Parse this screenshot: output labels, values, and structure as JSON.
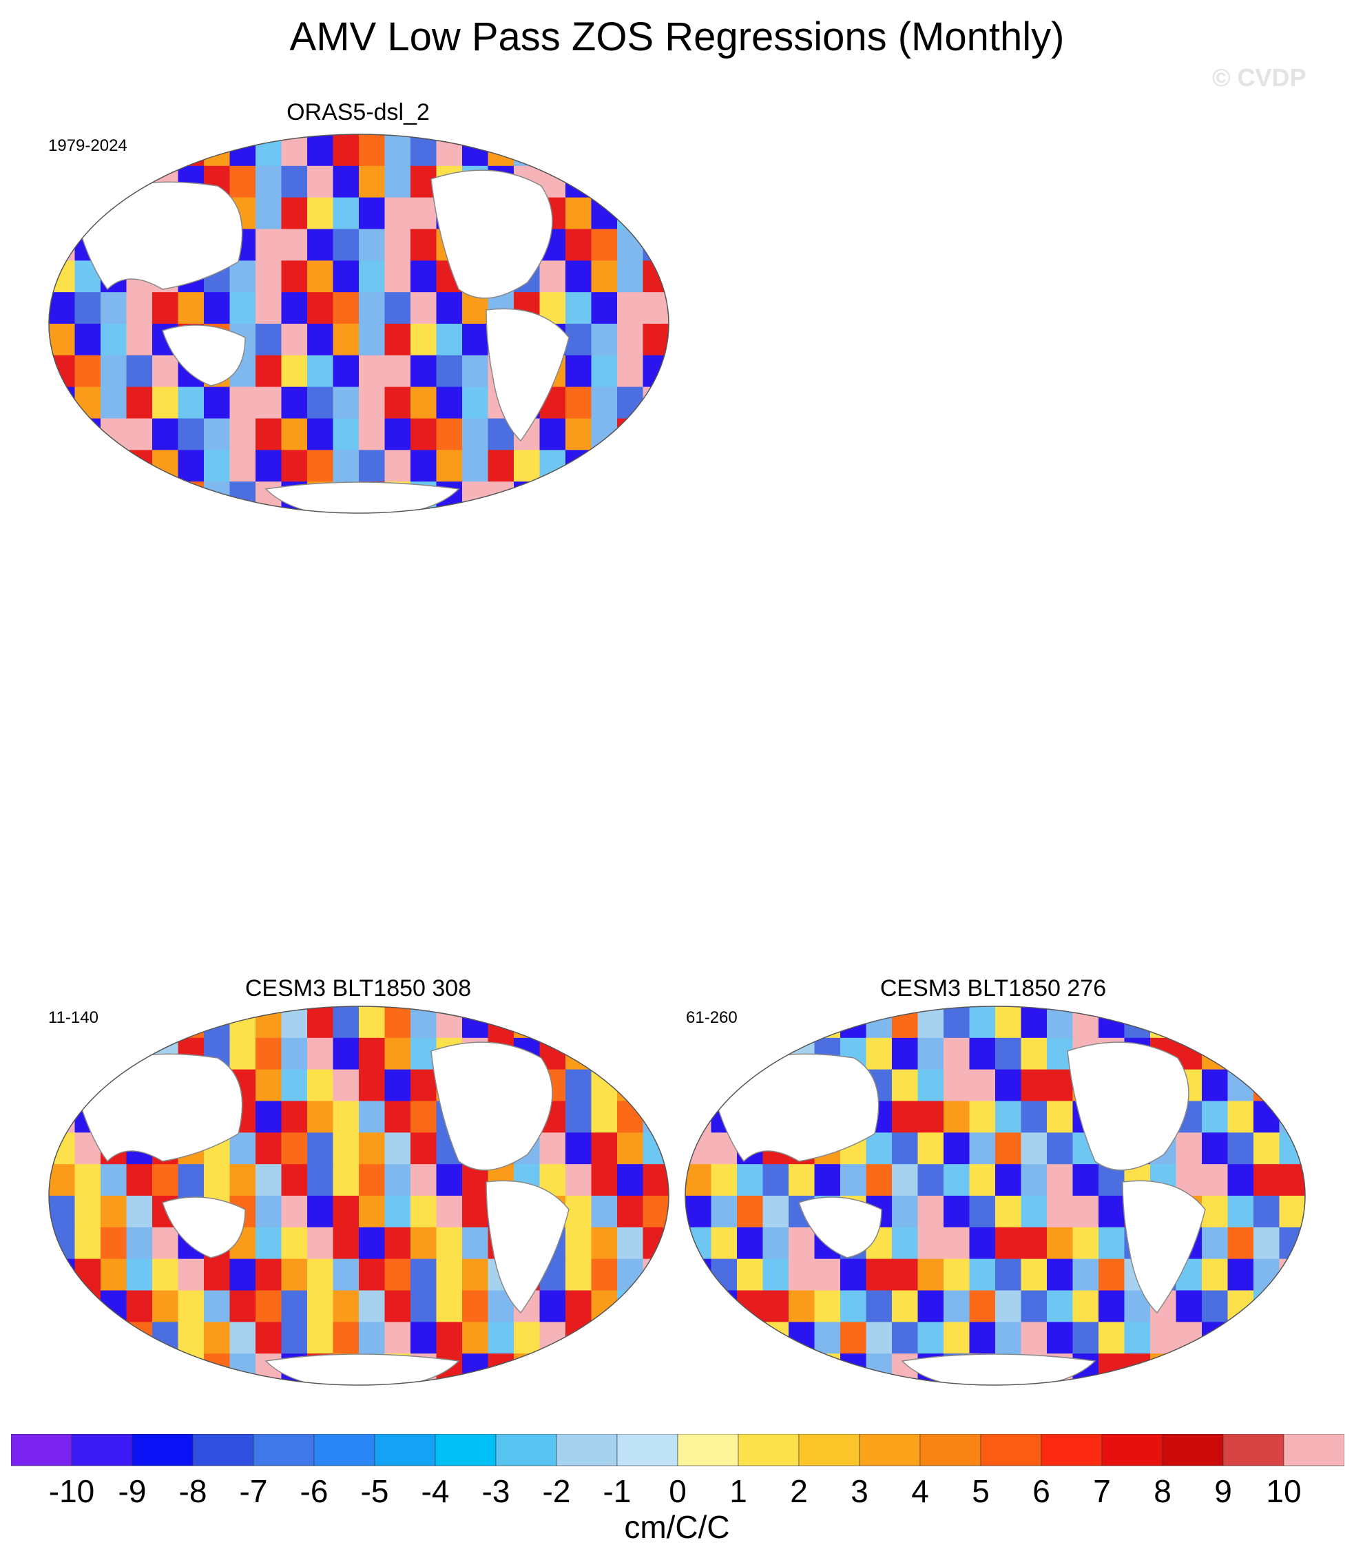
{
  "title": "AMV Low Pass ZOS Regressions (Monthly)",
  "watermark": "© CVDP",
  "panels": [
    {
      "name": "ORAS5-dsl_2",
      "period": "1979-2024",
      "palette": [
        "#f6b4b8",
        "#2a14f0",
        "#4b6fe0",
        "#7fb8ee",
        "#f6b4b8",
        "#e71d1d",
        "#fb9b1a",
        "#2a14f0",
        "#6ec6f3",
        "#f6b4b8",
        "#2a14f0",
        "#e71d1d",
        "#fb6a18",
        "#7fb8ee",
        "#4b6fe0",
        "#f6b4b8",
        "#2a14f0",
        "#fb9b1a",
        "#7fb8ee",
        "#e71d1d",
        "#fde14a",
        "#6ec6f3",
        "#2a14f0",
        "#f6b4b8"
      ]
    },
    {
      "name": "CESM3 BLT1850 308",
      "period": "11-140",
      "palette": [
        "#e71d1d",
        "#fb9b1a",
        "#fde14a",
        "#7fb8ee",
        "#e71d1d",
        "#fb6a18",
        "#4b6fe0",
        "#fde14a",
        "#fb9b1a",
        "#a6d2f0",
        "#e71d1d",
        "#4b6fe0",
        "#fde14a",
        "#fb6a18",
        "#7fb8ee",
        "#f6b4b8",
        "#2a14f0",
        "#e71d1d",
        "#fb9b1a",
        "#6ec6f3",
        "#fde14a",
        "#f6b4b8",
        "#e71d1d",
        "#2a14f0"
      ]
    },
    {
      "name": "CESM3 BLT1850 276",
      "period": "61-260",
      "palette": [
        "#e71d1d",
        "#fb9b1a",
        "#fde14a",
        "#6ec6f3",
        "#4b6fe0",
        "#fde14a",
        "#2a14f0",
        "#7fb8ee",
        "#fb6a18",
        "#a6d2f0",
        "#4b6fe0",
        "#6ec6f3",
        "#fde14a",
        "#2a14f0",
        "#7fb8ee",
        "#f6b4b8",
        "#2a14f0",
        "#4b6fe0",
        "#fde14a",
        "#6ec6f3",
        "#f6b4b8",
        "#f6b4b8",
        "#2a14f0",
        "#e71d1d"
      ]
    }
  ],
  "colorbar": {
    "colors": [
      "#7a22f0",
      "#3c1af5",
      "#0a12f5",
      "#2f4fe0",
      "#3f78e8",
      "#2a86f5",
      "#14a2f5",
      "#00c0f6",
      "#58c4f2",
      "#a6d2f0",
      "#bfe2f6",
      "#fef59a",
      "#fde14a",
      "#fcc62a",
      "#fba21a",
      "#fb8514",
      "#fb5c12",
      "#fb2a10",
      "#e8100e",
      "#cc0a0a",
      "#d84444",
      "#f6b4b8"
    ],
    "labels": [
      "-10",
      "-9",
      "-8",
      "-7",
      "-6",
      "-5",
      "-4",
      "-3",
      "-2",
      "-1",
      "0",
      "1",
      "2",
      "3",
      "4",
      "5",
      "6",
      "7",
      "8",
      "9",
      "10"
    ],
    "units": "cm/C/C"
  }
}
